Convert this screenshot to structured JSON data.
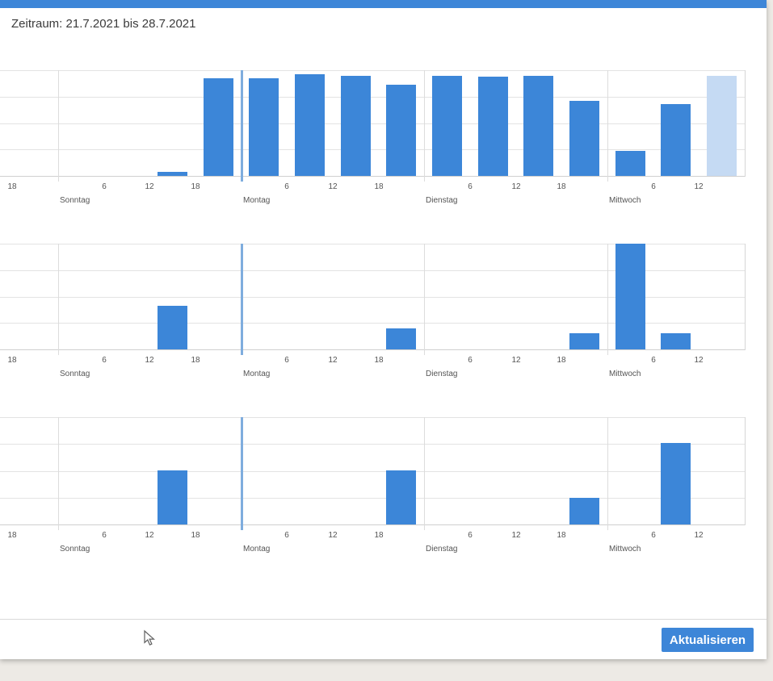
{
  "window": {
    "top_accent_color": "#3d86d8",
    "background_color": "#edeae5"
  },
  "header": {
    "title": "Zeitraum: 21.7.2021 bis 28.7.2021"
  },
  "footer": {
    "refresh_button_label": "Aktualisieren"
  },
  "colors": {
    "bar": "#3c86d8",
    "bar_highlight": "#c5daf3",
    "week_start_line": "#7fadde",
    "gridline": "#e3e3e3",
    "accent": "#3d86d8"
  },
  "chart_data": [
    {
      "type": "bar",
      "title": "",
      "x_unit": "hours from Sunday 00:00, 6-hour buckets",
      "plot_range_h": [
        -8,
        90
      ],
      "week_start_line_h": 24,
      "ylim": [
        0,
        100
      ],
      "grid": true,
      "legend": false,
      "bar_width_hours": 4,
      "ticks": [
        {
          "h": -6,
          "label": "18"
        },
        {
          "h": 6,
          "label": "6"
        },
        {
          "h": 12,
          "label": "12"
        },
        {
          "h": 18,
          "label": "18"
        },
        {
          "h": 30,
          "label": "6"
        },
        {
          "h": 36,
          "label": "12"
        },
        {
          "h": 42,
          "label": "18"
        },
        {
          "h": 54,
          "label": "6"
        },
        {
          "h": 60,
          "label": "12"
        },
        {
          "h": 66,
          "label": "18"
        },
        {
          "h": 78,
          "label": "6"
        },
        {
          "h": 84,
          "label": "12"
        }
      ],
      "days": [
        {
          "h": 0,
          "label": "Sonntag"
        },
        {
          "h": 24,
          "label": "Montag"
        },
        {
          "h": 48,
          "label": "Dienstag"
        },
        {
          "h": 72,
          "label": "Mittwoch"
        }
      ],
      "bars": [
        {
          "h": 15,
          "value": 4
        },
        {
          "h": 21,
          "value": 92
        },
        {
          "h": 27,
          "value": 92
        },
        {
          "h": 33,
          "value": 96
        },
        {
          "h": 39,
          "value": 95
        },
        {
          "h": 45,
          "value": 86
        },
        {
          "h": 51,
          "value": 95
        },
        {
          "h": 57,
          "value": 94
        },
        {
          "h": 63,
          "value": 95
        },
        {
          "h": 69,
          "value": 71
        },
        {
          "h": 75,
          "value": 24
        },
        {
          "h": 81,
          "value": 68
        },
        {
          "h": 87,
          "value": 95,
          "highlight": true
        }
      ]
    },
    {
      "type": "bar",
      "title": "",
      "x_unit": "hours from Sunday 00:00, 6-hour buckets",
      "plot_range_h": [
        -8,
        90
      ],
      "week_start_line_h": 24,
      "ylim": [
        0,
        100
      ],
      "grid": true,
      "legend": false,
      "bar_width_hours": 4,
      "ticks": [
        {
          "h": -6,
          "label": "18"
        },
        {
          "h": 6,
          "label": "6"
        },
        {
          "h": 12,
          "label": "12"
        },
        {
          "h": 18,
          "label": "18"
        },
        {
          "h": 30,
          "label": "6"
        },
        {
          "h": 36,
          "label": "12"
        },
        {
          "h": 42,
          "label": "18"
        },
        {
          "h": 54,
          "label": "6"
        },
        {
          "h": 60,
          "label": "12"
        },
        {
          "h": 66,
          "label": "18"
        },
        {
          "h": 78,
          "label": "6"
        },
        {
          "h": 84,
          "label": "12"
        }
      ],
      "days": [
        {
          "h": 0,
          "label": "Sonntag"
        },
        {
          "h": 24,
          "label": "Montag"
        },
        {
          "h": 48,
          "label": "Dienstag"
        },
        {
          "h": 72,
          "label": "Mittwoch"
        }
      ],
      "bars": [
        {
          "h": 15,
          "value": 41
        },
        {
          "h": 45,
          "value": 20
        },
        {
          "h": 69,
          "value": 15
        },
        {
          "h": 75,
          "value": 100
        },
        {
          "h": 81,
          "value": 15
        }
      ]
    },
    {
      "type": "bar",
      "title": "",
      "x_unit": "hours from Sunday 00:00, 6-hour buckets",
      "plot_range_h": [
        -8,
        90
      ],
      "week_start_line_h": 24,
      "ylim": [
        0,
        100
      ],
      "grid": true,
      "legend": false,
      "bar_width_hours": 4,
      "ticks": [
        {
          "h": -6,
          "label": "18"
        },
        {
          "h": 6,
          "label": "6"
        },
        {
          "h": 12,
          "label": "12"
        },
        {
          "h": 18,
          "label": "18"
        },
        {
          "h": 30,
          "label": "6"
        },
        {
          "h": 36,
          "label": "12"
        },
        {
          "h": 42,
          "label": "18"
        },
        {
          "h": 54,
          "label": "6"
        },
        {
          "h": 60,
          "label": "12"
        },
        {
          "h": 66,
          "label": "18"
        },
        {
          "h": 78,
          "label": "6"
        },
        {
          "h": 84,
          "label": "12"
        }
      ],
      "days": [
        {
          "h": 0,
          "label": "Sonntag"
        },
        {
          "h": 24,
          "label": "Montag"
        },
        {
          "h": 48,
          "label": "Dienstag"
        },
        {
          "h": 72,
          "label": "Mittwoch"
        }
      ],
      "bars": [
        {
          "h": 15,
          "value": 50
        },
        {
          "h": 45,
          "value": 50
        },
        {
          "h": 69,
          "value": 25
        },
        {
          "h": 81,
          "value": 76
        }
      ]
    }
  ]
}
